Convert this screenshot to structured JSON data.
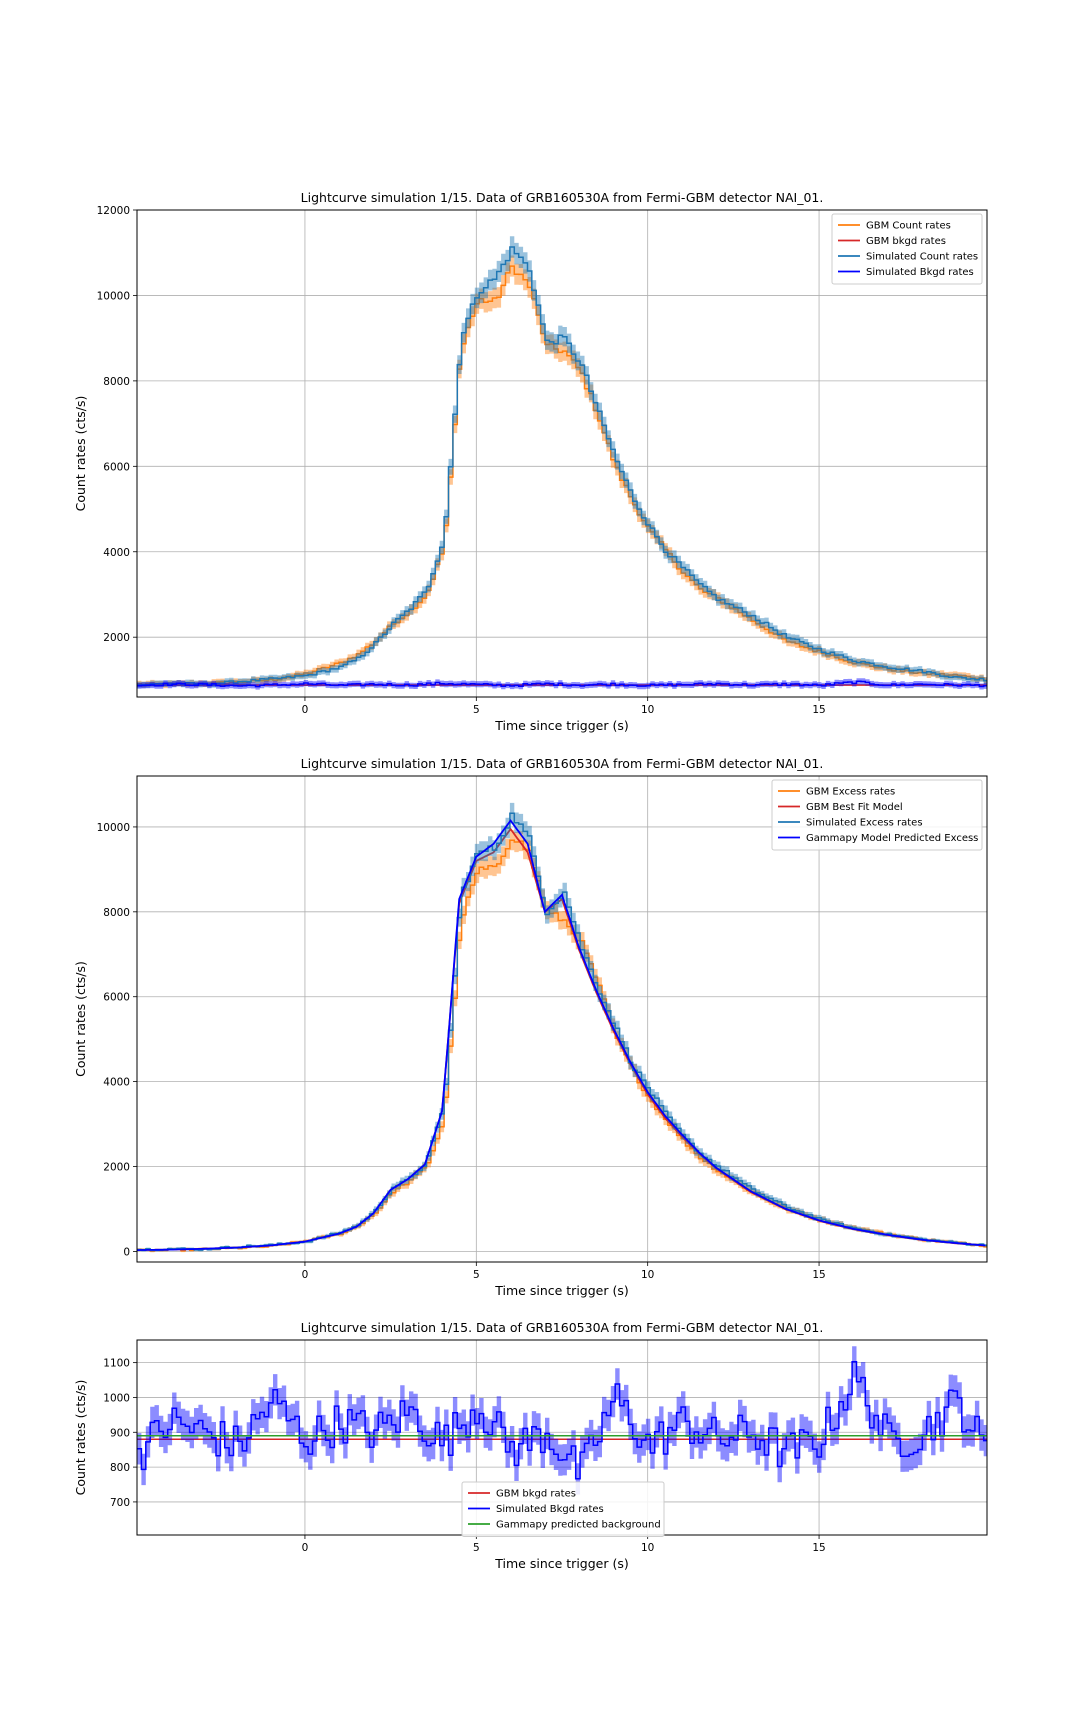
{
  "chart_data": [
    {
      "type": "line",
      "title": "Lightcurve simulation 1/15. Data of GRB160530A from Fermi-GBM detector NAI_01.",
      "xlabel": "Time since trigger (s)",
      "ylabel": "Count rates (cts/s)",
      "xlim": [
        -4.9,
        19.9
      ],
      "ylim": [
        600,
        12000
      ],
      "xticks": [
        0,
        5,
        10,
        15
      ],
      "yticks": [
        2000,
        4000,
        6000,
        8000,
        10000,
        12000
      ],
      "grid": true,
      "legend_position": "top-right",
      "colors": {
        "gbm_counts": "#ff7f0e",
        "gbm_bkg": "#d62728",
        "sim_counts": "#1f77b4",
        "sim_bkg": "#0000ff"
      },
      "series": [
        {
          "name": "GBM Count rates",
          "x": [
            -5,
            -4,
            -3,
            -2,
            -1,
            0,
            1,
            1.5,
            2,
            2.5,
            3,
            3.5,
            4,
            4.2,
            4.5,
            5,
            5.5,
            6,
            6.5,
            7,
            7.5,
            8,
            8.5,
            9,
            9.5,
            10,
            10.5,
            11,
            11.5,
            12,
            13,
            14,
            15,
            16,
            17,
            18,
            19,
            20
          ],
          "values": [
            900,
            900,
            920,
            950,
            1000,
            1150,
            1400,
            1600,
            1900,
            2300,
            2600,
            3000,
            4100,
            5800,
            8800,
            9900,
            9850,
            10700,
            10200,
            8800,
            8700,
            8200,
            7200,
            6000,
            5200,
            4500,
            4000,
            3500,
            3100,
            2900,
            2400,
            1900,
            1650,
            1400,
            1250,
            1150,
            1100,
            1000
          ]
        },
        {
          "name": "GBM bkgd rates",
          "x": [
            -5,
            20
          ],
          "values": [
            880,
            880
          ]
        },
        {
          "name": "Simulated Count rates",
          "x": [
            -5,
            -4,
            -3,
            -2,
            -1,
            0,
            1,
            1.5,
            2,
            2.5,
            3,
            3.5,
            4,
            4.2,
            4.5,
            5,
            5.5,
            6,
            6.5,
            7,
            7.5,
            8,
            8.5,
            9,
            9.5,
            10,
            10.5,
            11,
            11.5,
            12,
            13,
            14,
            15,
            16,
            17,
            18,
            19,
            20
          ],
          "values": [
            880,
            920,
            900,
            960,
            1020,
            1100,
            1300,
            1500,
            1850,
            2300,
            2650,
            3100,
            4300,
            6100,
            9000,
            10100,
            10400,
            11100,
            10600,
            8900,
            9000,
            8400,
            7300,
            6200,
            5300,
            4600,
            4000,
            3600,
            3200,
            2900,
            2500,
            2000,
            1700,
            1450,
            1300,
            1200,
            1050,
            1000
          ]
        },
        {
          "name": "Simulated Bkgd rates",
          "x": [
            -5,
            -4,
            -3,
            -2,
            -1,
            0,
            1,
            2,
            3,
            4,
            5,
            6,
            7,
            8,
            9,
            10,
            11,
            12,
            13,
            14,
            15,
            16,
            17,
            18,
            19,
            20
          ],
          "values": [
            870,
            900,
            890,
            860,
            880,
            910,
            870,
            900,
            880,
            920,
            890,
            870,
            910,
            880,
            900,
            870,
            890,
            910,
            880,
            900,
            870,
            950,
            880,
            900,
            880,
            870
          ]
        }
      ]
    },
    {
      "type": "line",
      "title": "Lightcurve simulation 1/15. Data of GRB160530A from Fermi-GBM detector NAI_01.",
      "xlabel": "Time since trigger (s)",
      "ylabel": "Count rates (cts/s)",
      "xlim": [
        -4.9,
        19.9
      ],
      "ylim": [
        -250,
        11200
      ],
      "xticks": [
        0,
        5,
        10,
        15
      ],
      "yticks": [
        0,
        2000,
        4000,
        6000,
        8000,
        10000
      ],
      "grid": true,
      "legend_position": "top-right",
      "colors": {
        "gbm_excess": "#ff7f0e",
        "gbm_model": "#d62728",
        "sim_excess": "#1f77b4",
        "gammapy_model": "#0000ff"
      },
      "series": [
        {
          "name": "GBM Excess rates",
          "x": [
            -5,
            -4,
            -3,
            -2,
            -1,
            0,
            1,
            1.5,
            2,
            2.5,
            3,
            3.5,
            4,
            4.2,
            4.5,
            5,
            5.5,
            6,
            6.5,
            7,
            7.5,
            8,
            8.5,
            9,
            9.5,
            10,
            10.5,
            11,
            11.5,
            12,
            13,
            14,
            15,
            16,
            17,
            18,
            19,
            20
          ],
          "values": [
            20,
            30,
            50,
            80,
            120,
            250,
            420,
            600,
            900,
            1400,
            1650,
            2000,
            3100,
            4900,
            7800,
            9000,
            9000,
            9800,
            9400,
            8000,
            7800,
            7300,
            6300,
            5100,
            4300,
            3600,
            3100,
            2600,
            2200,
            1900,
            1400,
            1000,
            750,
            550,
            400,
            280,
            200,
            120
          ]
        },
        {
          "name": "GBM Best Fit Model",
          "x": [
            -5,
            -4,
            -3,
            -2,
            -1,
            0,
            1,
            1.5,
            2,
            2.5,
            3,
            3.5,
            4,
            4.2,
            4.5,
            5,
            5.5,
            6,
            6.5,
            7,
            7.5,
            8,
            8.5,
            9,
            9.5,
            10,
            10.5,
            11,
            11.5,
            12,
            13,
            14,
            15,
            16,
            17,
            18,
            19,
            20
          ],
          "values": [
            30,
            40,
            60,
            90,
            140,
            230,
            420,
            580,
            900,
            1450,
            1700,
            2050,
            3300,
            5200,
            8200,
            9200,
            9400,
            9950,
            9400,
            8000,
            8300,
            7100,
            6100,
            5200,
            4400,
            3700,
            3150,
            2700,
            2300,
            1950,
            1400,
            1000,
            720,
            520,
            380,
            270,
            190,
            130
          ]
        },
        {
          "name": "Simulated Excess rates",
          "x": [
            -5,
            -4,
            -3,
            -2,
            -1,
            0,
            1,
            1.5,
            2,
            2.5,
            3,
            3.5,
            4,
            4.2,
            4.5,
            5,
            5.5,
            6,
            6.5,
            7,
            7.5,
            8,
            8.5,
            9,
            9.5,
            10,
            10.5,
            11,
            11.5,
            12,
            13,
            14,
            15,
            16,
            17,
            18,
            19,
            20
          ],
          "values": [
            40,
            60,
            50,
            110,
            150,
            230,
            450,
            620,
            950,
            1500,
            1700,
            2100,
            3400,
            5300,
            8400,
            9400,
            9500,
            10300,
            9700,
            8000,
            8500,
            7200,
            6200,
            5300,
            4400,
            3800,
            3200,
            2700,
            2300,
            2000,
            1450,
            1050,
            750,
            540,
            390,
            280,
            200,
            130
          ]
        },
        {
          "name": "Gammapy Model Predicted Excess",
          "x": [
            -5,
            -4,
            -3,
            -2,
            -1,
            0,
            1,
            1.5,
            2,
            2.5,
            3,
            3.5,
            4,
            4.2,
            4.5,
            5,
            5.5,
            6,
            6.5,
            7,
            7.5,
            8,
            8.5,
            9,
            9.5,
            10,
            10.5,
            11,
            11.5,
            12,
            13,
            14,
            15,
            16,
            17,
            18,
            19,
            20
          ],
          "values": [
            30,
            40,
            60,
            90,
            140,
            230,
            420,
            580,
            900,
            1450,
            1700,
            2050,
            3300,
            5200,
            8300,
            9300,
            9600,
            10150,
            9600,
            8000,
            8400,
            7150,
            6150,
            5250,
            4450,
            3750,
            3200,
            2750,
            2330,
            1970,
            1420,
            1010,
            730,
            530,
            390,
            275,
            195,
            130
          ]
        }
      ]
    },
    {
      "type": "line",
      "title": "Lightcurve simulation 1/15. Data of GRB160530A from Fermi-GBM detector NAI_01.",
      "xlabel": "Time since trigger (s)",
      "ylabel": "Count rates (cts/s)",
      "xlim": [
        -4.9,
        19.9
      ],
      "ylim": [
        605,
        1165
      ],
      "xticks": [
        0,
        5,
        10,
        15
      ],
      "yticks": [
        700,
        800,
        900,
        1000,
        1100
      ],
      "grid": true,
      "legend_position": "bottom-center",
      "colors": {
        "gbm_bkg": "#d62728",
        "sim_bkg": "#0000ff",
        "gammapy_bkg": "#2ca02c"
      },
      "series": [
        {
          "name": "GBM bkgd rates",
          "x": [
            -5,
            20
          ],
          "values": [
            880,
            880
          ]
        },
        {
          "name": "Simulated Bkgd rates",
          "x": [
            -5,
            -4,
            -3,
            -2,
            -1,
            0,
            1,
            2,
            3,
            4,
            5,
            6,
            7,
            8,
            9,
            10,
            11,
            12,
            13,
            14,
            15,
            16,
            17,
            18,
            19,
            20
          ],
          "values": [
            830,
            930,
            900,
            860,
            990,
            880,
            930,
            900,
            960,
            870,
            980,
            850,
            900,
            780,
            1000,
            860,
            930,
            880,
            900,
            840,
            880,
            1060,
            870,
            900,
            990,
            810
          ]
        },
        {
          "name": "Gammapy predicted background",
          "x": [
            -5,
            20
          ],
          "values": [
            890,
            890
          ]
        }
      ]
    }
  ]
}
